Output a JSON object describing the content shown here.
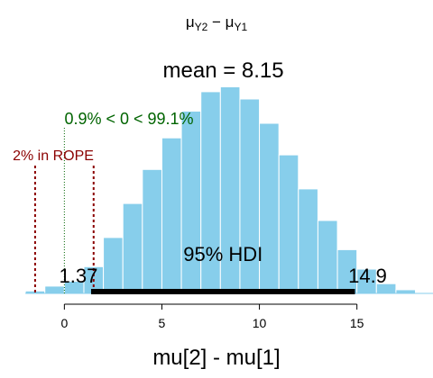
{
  "chart_data": {
    "type": "bar",
    "title": "μY2 − μY1",
    "title_main": "μ",
    "title_sub1": "Y2",
    "title_minus": " − μ",
    "title_sub2": "Y1",
    "xlabel": "mu[2] - mu[1]",
    "xlim": [
      -3.3,
      18.9
    ],
    "ylim": [
      0,
      1.0
    ],
    "x_ticks": [
      0,
      5,
      10,
      15
    ],
    "x_tick_labels": [
      "0",
      "5",
      "10",
      "15"
    ],
    "bar_color": "#87CEEB",
    "bin_width": 1.0,
    "bins": [
      {
        "x0": -2.0,
        "x1": -1.0,
        "density": 0.01
      },
      {
        "x0": -1.0,
        "x1": 0.0,
        "density": 0.03
      },
      {
        "x0": 0.0,
        "x1": 1.0,
        "density": 0.05
      },
      {
        "x0": 1.0,
        "x1": 2.0,
        "density": 0.11
      },
      {
        "x0": 2.0,
        "x1": 3.0,
        "density": 0.23
      },
      {
        "x0": 3.0,
        "x1": 4.0,
        "density": 0.37
      },
      {
        "x0": 4.0,
        "x1": 5.0,
        "density": 0.51
      },
      {
        "x0": 5.0,
        "x1": 6.0,
        "density": 0.64
      },
      {
        "x0": 6.0,
        "x1": 7.0,
        "density": 0.75
      },
      {
        "x0": 7.0,
        "x1": 8.0,
        "density": 0.83
      },
      {
        "x0": 8.0,
        "x1": 9.0,
        "density": 0.85
      },
      {
        "x0": 9.0,
        "x1": 10.0,
        "density": 0.8
      },
      {
        "x0": 10.0,
        "x1": 11.0,
        "density": 0.7
      },
      {
        "x0": 11.0,
        "x1": 12.0,
        "density": 0.57
      },
      {
        "x0": 12.0,
        "x1": 13.0,
        "density": 0.43
      },
      {
        "x0": 13.0,
        "x1": 14.0,
        "density": 0.3
      },
      {
        "x0": 14.0,
        "x1": 15.0,
        "density": 0.18
      },
      {
        "x0": 15.0,
        "x1": 16.0,
        "density": 0.1
      },
      {
        "x0": 16.0,
        "x1": 17.0,
        "density": 0.04
      },
      {
        "x0": 17.0,
        "x1": 18.0,
        "density": 0.015
      }
    ],
    "mean_label": "mean = 8.15",
    "mean": 8.15,
    "comparison_value": 0,
    "comparison_label": "0.9% < 0 < 99.1%",
    "comparison_color": "#006400",
    "rope": [
      -1.5,
      1.5
    ],
    "rope_label": "2% in ROPE",
    "rope_color": "#8B0000",
    "hdi": [
      1.37,
      14.9
    ],
    "hdi_label": "95% HDI",
    "hdi_low_label": "1.37",
    "hdi_high_label": "14.9"
  }
}
